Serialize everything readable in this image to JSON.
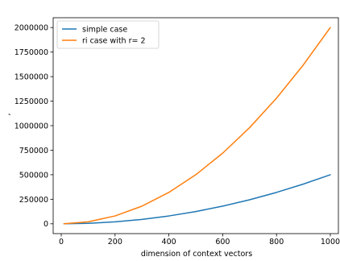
{
  "chart_data": {
    "type": "line",
    "title": "",
    "xlabel": "dimension of context vectors",
    "ylabel": ",",
    "xlim": [
      -30,
      1030
    ],
    "ylim": [
      -100000,
      2100000
    ],
    "x_ticks": [
      0,
      200,
      400,
      600,
      800,
      1000
    ],
    "x_tick_labels": [
      "0",
      "200",
      "400",
      "600",
      "800",
      "1000"
    ],
    "y_ticks": [
      0,
      250000,
      500000,
      750000,
      1000000,
      1250000,
      1500000,
      1750000,
      2000000
    ],
    "y_tick_labels": [
      "0",
      "250000",
      "500000",
      "750000",
      "1000000",
      "1250000",
      "1500000",
      "1750000",
      "2000000"
    ],
    "grid": false,
    "legend_position": "top-left",
    "x": [
      10,
      100,
      200,
      300,
      400,
      500,
      600,
      700,
      800,
      900,
      1000
    ],
    "series": [
      {
        "name": "simple case",
        "color": "#1f77b4",
        "values": [
          50,
          5000,
          20000,
          45000,
          80000,
          125000,
          180000,
          245000,
          320000,
          405000,
          500000
        ]
      },
      {
        "name": "ri case with r= 2",
        "color": "#ff7f0e",
        "values": [
          200,
          20000,
          80000,
          180000,
          320000,
          500000,
          720000,
          980000,
          1280000,
          1620000,
          2000000
        ]
      }
    ]
  }
}
